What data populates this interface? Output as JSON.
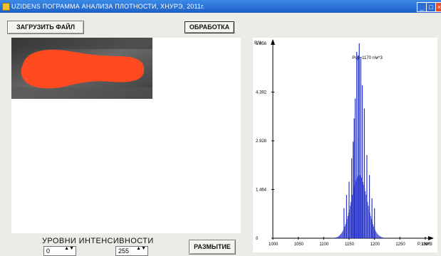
{
  "window": {
    "title": "UZIDENS   ПОГРАММА АНАЛИЗА ПЛОТНОСТИ,  ХНУРЭ, 2011г.",
    "min_glyph": "_",
    "max_glyph": "□",
    "close_glyph": "×"
  },
  "toolbar": {
    "load_label": "ЗАГРУЗИТЬ ФАЙЛ",
    "process_label": "ОБРАБОТКА",
    "blur_label": "РАЗМЫТИЕ"
  },
  "intensity": {
    "label": "УРОВНИ ИНТЕНСИВНОСТИ",
    "min_value": "0",
    "max_value": "255",
    "arrows": "▲▼"
  },
  "colors": {
    "highlight": "#ff4a1f",
    "series": "#2a35c8",
    "axis": "#000000"
  },
  "chart_data": {
    "type": "bar",
    "ylabel": "5,%",
    "xlabel": "P, г/м^3",
    "xlim": [
      1000,
      1300
    ],
    "ylim": [
      0,
      5.856
    ],
    "yticks": [
      0,
      1.464,
      2.928,
      4.392,
      5.856
    ],
    "ytick_labels": [
      "0",
      "1.464",
      "2.928",
      "4.392",
      "5.856"
    ],
    "xticks": [
      1000,
      1050,
      1100,
      1150,
      1200,
      1250,
      1300
    ],
    "annotation": "Pср=1170 г/м^3",
    "annotation_x": 1170,
    "peaks": [
      {
        "x": 1140,
        "y": 0.9
      },
      {
        "x": 1145,
        "y": 1.3
      },
      {
        "x": 1150,
        "y": 1.7
      },
      {
        "x": 1155,
        "y": 2.4
      },
      {
        "x": 1158,
        "y": 2.9
      },
      {
        "x": 1160,
        "y": 3.6
      },
      {
        "x": 1162,
        "y": 4.2
      },
      {
        "x": 1165,
        "y": 5.6
      },
      {
        "x": 1168,
        "y": 5.5
      },
      {
        "x": 1170,
        "y": 5.856
      },
      {
        "x": 1173,
        "y": 5.4
      },
      {
        "x": 1176,
        "y": 4.6
      },
      {
        "x": 1180,
        "y": 3.9
      },
      {
        "x": 1185,
        "y": 2.5
      },
      {
        "x": 1190,
        "y": 1.9
      },
      {
        "x": 1195,
        "y": 1.2
      },
      {
        "x": 1200,
        "y": 0.9
      }
    ]
  }
}
